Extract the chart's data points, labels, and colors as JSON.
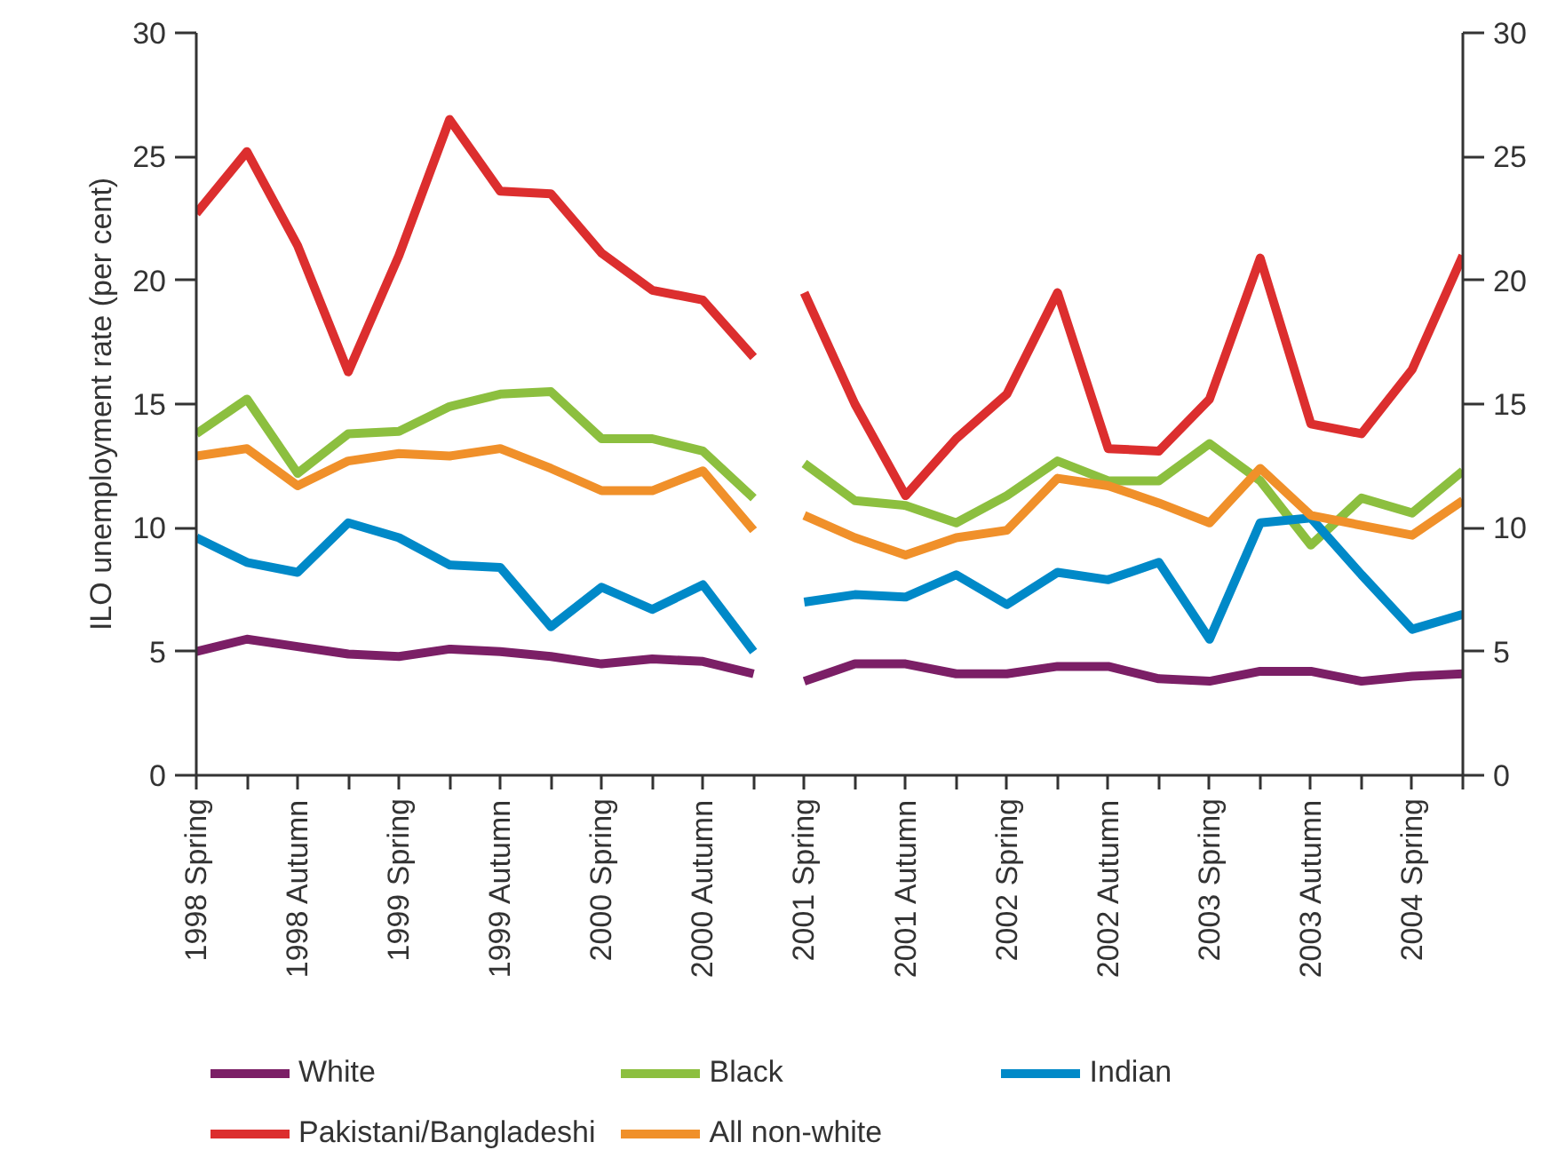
{
  "chart_data": {
    "type": "line",
    "ylabel": "ILO unemployment rate (per cent)",
    "categories": [
      "1998 Spring",
      null,
      "1998 Autumn",
      null,
      "1999 Spring",
      null,
      "1999 Autumn",
      null,
      "2000 Spring",
      null,
      "2000 Autumn",
      null,
      "2001 Spring",
      null,
      "2001 Autumn",
      null,
      "2002 Spring",
      null,
      "2002 Autumn",
      null,
      "2003 Spring",
      null,
      "2003 Autumn",
      null,
      "2004 Spring",
      null
    ],
    "ylim": [
      0,
      30
    ],
    "yticks": [
      0,
      5,
      10,
      15,
      20,
      25,
      30
    ],
    "y2lim": [
      0,
      30
    ],
    "y2ticks": [
      0,
      5,
      10,
      15,
      20,
      25,
      30
    ],
    "grid": false,
    "legend": "bottom",
    "marker": "none",
    "line_style": "solid",
    "series": [
      {
        "name": "White",
        "color": "#7b1f66",
        "values": [
          5.0,
          5.5,
          5.2,
          4.9,
          4.8,
          5.1,
          5.0,
          4.8,
          4.5,
          4.7,
          4.6,
          4.1,
          null,
          null,
          null,
          null,
          null,
          null,
          null,
          null,
          null,
          null,
          null,
          null,
          null,
          null
        ]
      },
      {
        "name": "Black",
        "color": "#8cbf3f",
        "values": [
          13.8,
          15.2,
          12.2,
          13.8,
          13.9,
          14.9,
          15.4,
          15.5,
          13.6,
          13.6,
          13.1,
          11.2,
          null,
          null,
          null,
          null,
          null,
          null,
          null,
          null,
          null,
          null,
          null,
          null,
          null,
          null
        ]
      },
      {
        "name": "Indian",
        "color": "#0089c8",
        "values": [
          9.6,
          8.6,
          8.2,
          10.2,
          9.6,
          8.5,
          8.4,
          6.0,
          7.6,
          6.7,
          7.7,
          5.0,
          null,
          null,
          null,
          null,
          null,
          null,
          null,
          null,
          null,
          null,
          null,
          null,
          null,
          null
        ]
      },
      {
        "name": "Pakistani/Bangladeshi",
        "color": "#dc2e2e",
        "values": [
          22.7,
          25.2,
          21.4,
          16.3,
          21.0,
          26.5,
          23.6,
          23.5,
          21.1,
          19.6,
          19.2,
          16.9,
          null,
          null,
          null,
          null,
          null,
          null,
          null,
          null,
          null,
          null,
          null,
          null,
          null,
          null
        ]
      },
      {
        "name": "All non-white",
        "color": "#f0902a",
        "values": [
          12.9,
          13.2,
          11.7,
          12.7,
          13.0,
          12.9,
          13.2,
          12.4,
          11.5,
          11.5,
          12.3,
          9.9,
          null,
          null,
          null,
          null,
          null,
          null,
          null,
          null,
          null,
          null,
          null,
          null,
          null,
          null
        ]
      },
      {
        "color": "#7b1f66",
        "values": [
          null,
          null,
          null,
          null,
          null,
          null,
          null,
          null,
          null,
          null,
          null,
          null,
          3.8,
          4.5,
          4.5,
          4.1,
          4.1,
          4.4,
          4.4,
          3.9,
          3.8,
          4.2,
          4.2,
          3.8,
          4.0,
          4.1
        ]
      },
      {
        "color": "#8cbf3f",
        "values": [
          null,
          null,
          null,
          null,
          null,
          null,
          null,
          null,
          null,
          null,
          null,
          null,
          12.6,
          11.1,
          10.9,
          10.2,
          11.3,
          12.7,
          11.9,
          11.9,
          13.4,
          11.9,
          9.3,
          11.2,
          10.6,
          12.3
        ]
      },
      {
        "color": "#0089c8",
        "values": [
          null,
          null,
          null,
          null,
          null,
          null,
          null,
          null,
          null,
          null,
          null,
          null,
          7.0,
          7.3,
          7.2,
          8.1,
          6.9,
          8.2,
          7.9,
          8.6,
          5.5,
          10.2,
          10.4,
          8.1,
          5.9,
          6.5
        ]
      },
      {
        "color": "#dc2e2e",
        "values": [
          null,
          null,
          null,
          null,
          null,
          null,
          null,
          null,
          null,
          null,
          null,
          null,
          19.5,
          15.0,
          11.3,
          13.6,
          15.4,
          19.5,
          13.2,
          13.1,
          15.2,
          20.9,
          14.2,
          13.8,
          16.4,
          21.0
        ]
      },
      {
        "color": "#f0902a",
        "values": [
          null,
          null,
          null,
          null,
          null,
          null,
          null,
          null,
          null,
          null,
          null,
          null,
          10.5,
          9.6,
          8.9,
          9.6,
          9.9,
          12.0,
          11.7,
          11.0,
          10.2,
          12.4,
          10.5,
          10.1,
          9.7,
          11.1
        ]
      }
    ]
  }
}
